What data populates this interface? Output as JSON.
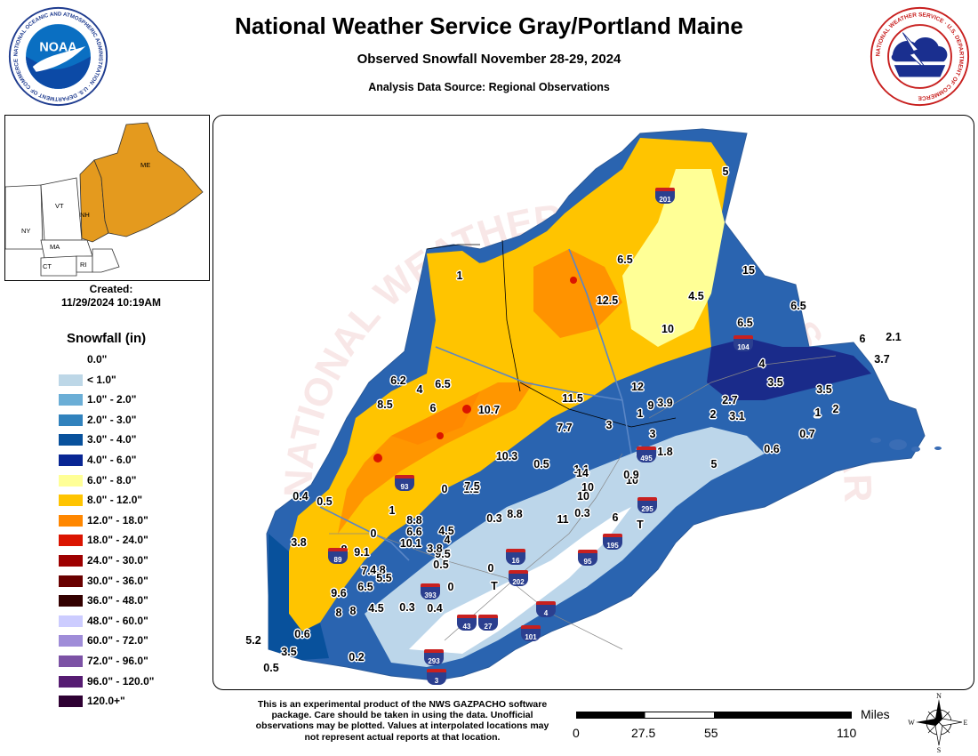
{
  "header": {
    "title": "National Weather Service Gray/Portland Maine",
    "subtitle": "Observed Snowfall November 28-29, 2024",
    "source": "Analysis Data Source: Regional Observations"
  },
  "logos": {
    "left_ring": "NATIONAL OCEANIC AND ATMOSPHERIC ADMINISTRATION · U.S. DEPARTMENT OF COMMERCE",
    "left_center": "NOAA",
    "right_ring": "NATIONAL WEATHER SERVICE · U.S. DEPARTMENT OF COMMERCE"
  },
  "inset": {
    "labels": [
      "ME",
      "VT",
      "NH",
      "NY",
      "MA",
      "CT",
      "RI"
    ],
    "highlight_color": "#e49a1e"
  },
  "created": {
    "label": "Created:",
    "datetime": "11/29/2024 10:19AM"
  },
  "legend": {
    "title": "Snowfall (in)",
    "items": [
      {
        "label": "0.0\"",
        "color": "#ffffff"
      },
      {
        "label": "< 1.0\"",
        "color": "#bdd7e7"
      },
      {
        "label": "1.0\" - 2.0\"",
        "color": "#6baed6"
      },
      {
        "label": "2.0\" - 3.0\"",
        "color": "#3182bd"
      },
      {
        "label": "3.0\" - 4.0\"",
        "color": "#08519c"
      },
      {
        "label": "4.0\" - 6.0\"",
        "color": "#082694"
      },
      {
        "label": "6.0\" - 8.0\"",
        "color": "#ffff96"
      },
      {
        "label": "8.0\" - 12.0\"",
        "color": "#ffc400"
      },
      {
        "label": "12.0\" - 18.0\"",
        "color": "#ff8700"
      },
      {
        "label": "18.0\" - 24.0\"",
        "color": "#db1400"
      },
      {
        "label": "24.0\" - 30.0\"",
        "color": "#9e0000"
      },
      {
        "label": "30.0\" - 36.0\"",
        "color": "#690000"
      },
      {
        "label": "36.0\" - 48.0\"",
        "color": "#330000"
      },
      {
        "label": "48.0\" - 60.0\"",
        "color": "#ccccff"
      },
      {
        "label": "60.0\" - 72.0\"",
        "color": "#9f8cd8"
      },
      {
        "label": "72.0\" - 96.0\"",
        "color": "#7c52a5"
      },
      {
        "label": "96.0\" - 120.0\"",
        "color": "#561c72"
      },
      {
        "label": "120.0+\"",
        "color": "#2e0033"
      }
    ]
  },
  "map": {
    "watermark": "NATIONAL WEATHER SERVICE · U.S. DEPARTMENT OF COMMERCE",
    "reports": [
      "5",
      "15",
      "6.5",
      "12.5",
      "4.5",
      "6.5",
      "6.5",
      "10",
      "6",
      "2.1",
      "1",
      "3.7",
      "4",
      "3.5",
      "3.5",
      "2",
      "1",
      "6.2",
      "6.5",
      "4",
      "8.5",
      "6",
      "12",
      "11.5",
      "10.7",
      "9",
      "3.9",
      "2.7",
      "2",
      "3.1",
      "1",
      "0.7",
      "7.7",
      "3",
      "3",
      "2",
      "1.8",
      "0.6",
      "5",
      "9.5",
      "10.3",
      "0.5",
      "1.1",
      "1.1",
      "0",
      "7.5",
      "14",
      "10",
      "10",
      "0.9",
      "0.4",
      "0.5",
      "1",
      "8.8",
      "8.8",
      "11",
      "10",
      "6",
      "0.3",
      "0.3",
      "0",
      "4.5",
      "10.1",
      "3.8",
      "4",
      "6.6",
      "3.8",
      "9.1",
      "8",
      "0.5",
      "0",
      "7.3",
      "4.8",
      "5.5",
      "9.6",
      "6.5",
      "T",
      "0",
      "8",
      "8",
      "4.5",
      "0.3",
      "0.4",
      "0.6",
      "5.2",
      "3.5",
      "0.2",
      "0.5",
      "T",
      "1",
      "2"
    ],
    "shields": [
      "201",
      "104",
      "495",
      "93",
      "95",
      "295",
      "195",
      "89",
      "16",
      "202",
      "393",
      "4",
      "43",
      "27",
      "101",
      "293",
      "3"
    ]
  },
  "disclaimer": "This is an experimental product of the NWS GAZPACHO software package. Care should be taken in using the data. Unofficial observations may be plotted. Values at interpolated locations may not represent actual reports at that location.",
  "scale": {
    "unit": "Miles",
    "ticks": [
      "0",
      "27.5",
      "55",
      "110"
    ]
  },
  "compass": {
    "n": "N",
    "s": "S",
    "e": "E",
    "w": "W"
  }
}
